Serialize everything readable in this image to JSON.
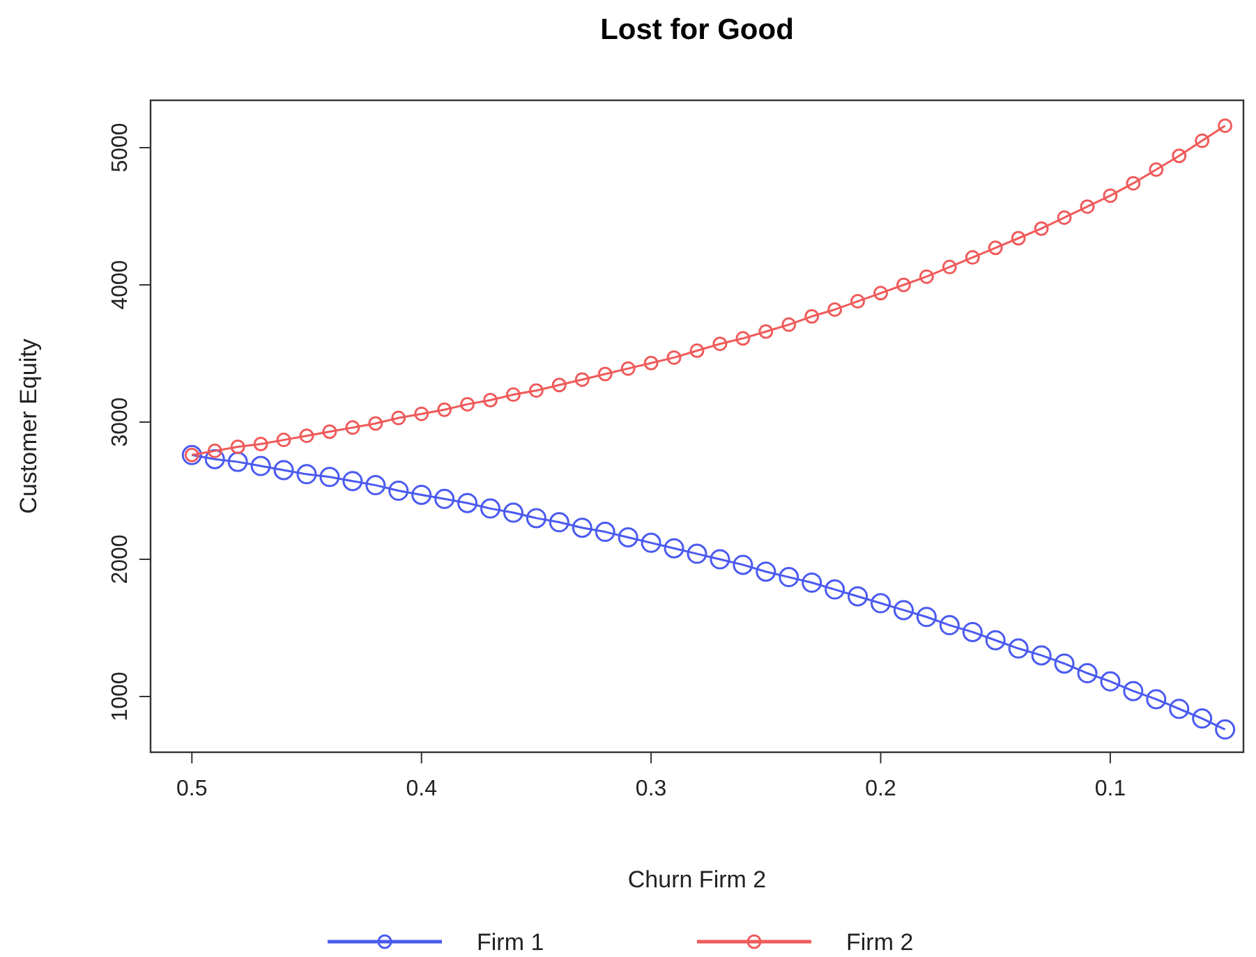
{
  "chart_data": {
    "type": "line",
    "title": "Lost for Good",
    "xlabel": "Churn Firm 2",
    "ylabel": "Customer Equity",
    "x": [
      0.5,
      0.49,
      0.48,
      0.47,
      0.46,
      0.45,
      0.44,
      0.43,
      0.42,
      0.41,
      0.4,
      0.39,
      0.38,
      0.37,
      0.36,
      0.35,
      0.34,
      0.33,
      0.32,
      0.31,
      0.3,
      0.29,
      0.28,
      0.27,
      0.26,
      0.25,
      0.24,
      0.23,
      0.22,
      0.21,
      0.2,
      0.19,
      0.18,
      0.17,
      0.16,
      0.15,
      0.14,
      0.13,
      0.12,
      0.11,
      0.1,
      0.09,
      0.08,
      0.07,
      0.06,
      0.05
    ],
    "series": [
      {
        "name": "Firm 1",
        "color": "#4a5af0",
        "values": [
          2760,
          2730,
          2710,
          2680,
          2650,
          2620,
          2600,
          2570,
          2540,
          2500,
          2470,
          2440,
          2410,
          2370,
          2340,
          2300,
          2270,
          2230,
          2200,
          2160,
          2120,
          2080,
          2040,
          2000,
          1960,
          1910,
          1870,
          1830,
          1780,
          1730,
          1680,
          1630,
          1580,
          1520,
          1470,
          1410,
          1350,
          1300,
          1240,
          1170,
          1110,
          1040,
          980,
          910,
          840,
          760
        ]
      },
      {
        "name": "Firm 2",
        "color": "#f05a5a",
        "values": [
          2760,
          2790,
          2820,
          2840,
          2870,
          2900,
          2930,
          2960,
          2990,
          3030,
          3060,
          3090,
          3130,
          3160,
          3200,
          3230,
          3270,
          3310,
          3350,
          3390,
          3430,
          3470,
          3520,
          3570,
          3610,
          3660,
          3710,
          3770,
          3820,
          3880,
          3940,
          4000,
          4060,
          4130,
          4200,
          4270,
          4340,
          4410,
          4490,
          4570,
          4650,
          4740,
          4840,
          4940,
          5050,
          5160
        ]
      }
    ],
    "xlim": [
      0.518,
      0.042
    ],
    "xticks": [
      {
        "value": 0.5,
        "label": "0.5"
      },
      {
        "value": 0.4,
        "label": "0.4"
      },
      {
        "value": 0.3,
        "label": "0.3"
      },
      {
        "value": 0.2,
        "label": "0.2"
      },
      {
        "value": 0.1,
        "label": "0.1"
      }
    ],
    "ylim": [
      594,
      5345
    ],
    "yticks": [
      1000,
      2000,
      3000,
      4000,
      5000
    ],
    "grid": false,
    "legend": "bottom",
    "marker": "circle",
    "line_style": "solid"
  }
}
